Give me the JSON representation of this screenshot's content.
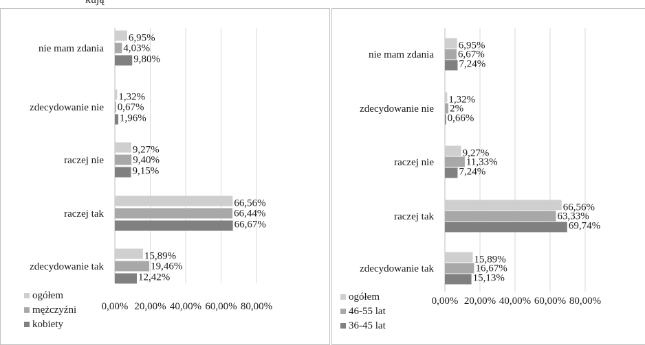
{
  "header_fragment": "kują",
  "chart_data": [
    {
      "type": "bar",
      "orientation": "horizontal",
      "categories": [
        "nie mam zdania",
        "zdecydowanie nie",
        "raczej nie",
        "raczej tak",
        "zdecydowanie tak"
      ],
      "series": [
        {
          "name": "ogółem",
          "color": "#cfcfcf",
          "values": [
            6.95,
            1.32,
            9.27,
            66.56,
            15.89
          ],
          "labels": [
            "6,95%",
            "1,32%",
            "9,27%",
            "66,56%",
            "15,89%"
          ]
        },
        {
          "name": "mężczyźni",
          "color": "#a8a8a8",
          "values": [
            4.03,
            0.67,
            9.4,
            66.44,
            19.46
          ],
          "labels": [
            "4,03%",
            "0,67%",
            "9,40%",
            "66,44%",
            "19,46%"
          ]
        },
        {
          "name": "kobiety",
          "color": "#808080",
          "values": [
            9.8,
            1.96,
            9.15,
            66.67,
            12.42
          ],
          "labels": [
            "9,80%",
            "1,96%",
            "9,15%",
            "66,67%",
            "12,42%"
          ]
        }
      ],
      "xlim": [
        0,
        80
      ],
      "xticks": [
        "0,00%",
        "20,00%",
        "40,00%",
        "60,00%",
        "80,00%"
      ],
      "grid": true,
      "legend_position": "bottom-left"
    },
    {
      "type": "bar",
      "orientation": "horizontal",
      "categories": [
        "nie mam zdania",
        "zdecydowanie nie",
        "raczej nie",
        "raczej tak",
        "zdecydowanie tak"
      ],
      "series": [
        {
          "name": "ogółem",
          "color": "#cfcfcf",
          "values": [
            6.95,
            1.32,
            9.27,
            66.56,
            15.89
          ],
          "labels": [
            "6,95%",
            "1,32%",
            "9,27%",
            "66,56%",
            "15,89%"
          ]
        },
        {
          "name": "46-55 lat",
          "color": "#a8a8a8",
          "values": [
            6.67,
            2,
            11.33,
            63.33,
            16.67
          ],
          "labels": [
            "6,67%",
            "2%",
            "11,33%",
            "63,33%",
            "16,67%"
          ]
        },
        {
          "name": "36-45 lat",
          "color": "#808080",
          "values": [
            7.24,
            0.66,
            7.24,
            69.74,
            15.13
          ],
          "labels": [
            "7,24%",
            "0,66%",
            "7,24%",
            "69,74%",
            "15,13%"
          ]
        }
      ],
      "xlim": [
        0,
        80
      ],
      "xticks": [
        "0,00%",
        "20,00%",
        "40,00%",
        "60,00%",
        "80,00%"
      ],
      "grid": true,
      "legend_position": "bottom-left"
    }
  ]
}
